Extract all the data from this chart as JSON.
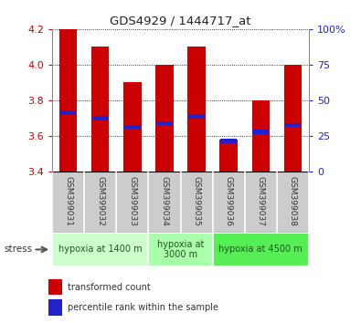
{
  "title": "GDS4929 / 1444717_at",
  "samples": [
    "GSM399031",
    "GSM399032",
    "GSM399033",
    "GSM399034",
    "GSM399035",
    "GSM399036",
    "GSM399037",
    "GSM399038"
  ],
  "bar_tops": [
    4.2,
    4.1,
    3.9,
    4.0,
    4.1,
    3.58,
    3.8,
    4.0
  ],
  "bar_bottoms": [
    3.4,
    3.4,
    3.4,
    3.4,
    3.4,
    3.4,
    3.4,
    3.4
  ],
  "blue_marks": [
    3.73,
    3.7,
    3.65,
    3.67,
    3.71,
    3.57,
    3.62,
    3.66
  ],
  "ylim": [
    3.4,
    4.2
  ],
  "y2lim": [
    0,
    100
  ],
  "y_ticks": [
    3.4,
    3.6,
    3.8,
    4.0,
    4.2
  ],
  "y2_ticks": [
    0,
    25,
    50,
    75,
    100
  ],
  "bar_color": "#cc0000",
  "blue_color": "#2222cc",
  "bar_width": 0.55,
  "groups": [
    {
      "label": "hypoxia at 1400 m",
      "start": 0,
      "end": 3,
      "color": "#ccffcc"
    },
    {
      "label": "hypoxia at\n3000 m",
      "start": 3,
      "end": 5,
      "color": "#aaffaa"
    },
    {
      "label": "hypoxia at 4500 m",
      "start": 5,
      "end": 8,
      "color": "#55ee55"
    }
  ],
  "legend_items": [
    {
      "label": "transformed count",
      "color": "#cc0000"
    },
    {
      "label": "percentile rank within the sample",
      "color": "#2222cc"
    }
  ],
  "tick_color_left": "#cc0000",
  "tick_color_right": "#2222cc",
  "sample_bg": "#cccccc",
  "grid_color": "#000000"
}
